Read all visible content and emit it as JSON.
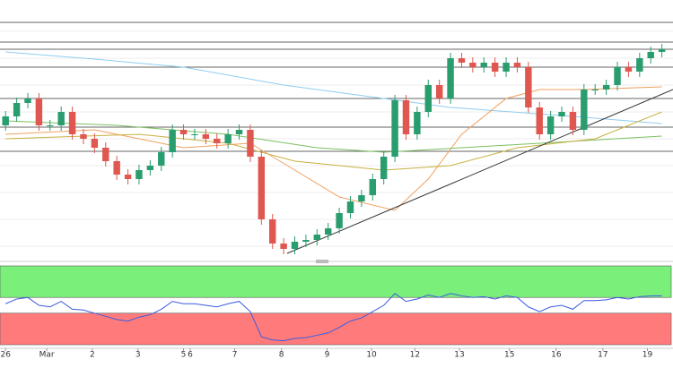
{
  "chart_data": {
    "type": "candlestick",
    "ylim": [
      0,
      280
    ],
    "xlim": [
      -0.5,
      60
    ],
    "candle_colors": {
      "up": "#2a9d6f",
      "down": "#e0574f"
    },
    "open": [
      150,
      160,
      175,
      180,
      150,
      150,
      165,
      140,
      135,
      125,
      110,
      95,
      90,
      100,
      105,
      120,
      145,
      140,
      140,
      135,
      130,
      140,
      145,
      115,
      45,
      18,
      12,
      20,
      22,
      28,
      35,
      52,
      65,
      72,
      90,
      115,
      178,
      140,
      165,
      195,
      180,
      225,
      220,
      215,
      220,
      210,
      220,
      215,
      170,
      140,
      160,
      165,
      145,
      190,
      190,
      195,
      215,
      210,
      225,
      232
    ],
    "high": [
      166,
      181,
      186,
      186,
      156,
      171,
      171,
      146,
      141,
      131,
      116,
      101,
      106,
      111,
      126,
      151,
      151,
      146,
      146,
      141,
      146,
      151,
      151,
      121,
      51,
      24,
      26,
      28,
      34,
      41,
      58,
      71,
      78,
      96,
      121,
      184,
      184,
      171,
      201,
      201,
      231,
      231,
      226,
      226,
      226,
      226,
      226,
      221,
      176,
      166,
      171,
      171,
      196,
      196,
      201,
      221,
      221,
      231,
      238,
      241
    ],
    "low": [
      144,
      154,
      169,
      144,
      144,
      144,
      134,
      129,
      119,
      104,
      89,
      84,
      84,
      94,
      99,
      114,
      134,
      134,
      129,
      124,
      124,
      134,
      109,
      39,
      12,
      6,
      6,
      14,
      16,
      22,
      29,
      46,
      59,
      66,
      84,
      109,
      134,
      134,
      159,
      174,
      174,
      214,
      209,
      209,
      204,
      204,
      209,
      164,
      134,
      134,
      154,
      139,
      139,
      184,
      184,
      189,
      204,
      204,
      219,
      226
    ],
    "close": [
      160,
      175,
      180,
      150,
      150,
      165,
      140,
      135,
      125,
      110,
      95,
      90,
      100,
      105,
      120,
      145,
      140,
      140,
      135,
      130,
      140,
      145,
      115,
      45,
      18,
      12,
      20,
      22,
      28,
      35,
      52,
      65,
      72,
      90,
      115,
      178,
      140,
      165,
      195,
      180,
      225,
      220,
      215,
      220,
      210,
      220,
      215,
      170,
      140,
      160,
      165,
      145,
      190,
      190,
      195,
      215,
      210,
      225,
      232,
      235
    ],
    "levels": [
      265,
      243,
      235,
      215,
      180,
      148,
      121
    ],
    "level_color": "#333333",
    "moving_averages": [
      {
        "color": "#8ecdf0",
        "x": [
          0,
          8,
          16,
          25,
          34,
          40,
          51,
          59
        ],
        "values": [
          232,
          224,
          215,
          195,
          180,
          170,
          160,
          152
        ]
      },
      {
        "color": "#f0a060",
        "x": [
          0,
          8,
          16,
          22,
          24,
          30,
          35,
          38,
          41,
          45,
          48,
          52,
          59
        ],
        "values": [
          140,
          145,
          125,
          130,
          115,
          70,
          55,
          90,
          140,
          180,
          190,
          190,
          193
        ]
      },
      {
        "color": "#7cc060",
        "x": [
          0,
          10,
          20,
          28,
          34,
          41,
          48,
          59
        ],
        "values": [
          155,
          150,
          140,
          125,
          120,
          125,
          130,
          138
        ]
      },
      {
        "color": "#c8b040",
        "x": [
          0,
          12,
          20,
          26,
          34,
          40,
          46,
          53,
          59
        ],
        "values": [
          135,
          140,
          130,
          110,
          100,
          105,
          125,
          135,
          165
        ]
      }
    ],
    "rsi": {
      "ylim": [
        0,
        100
      ],
      "color": "#3a5ce0",
      "upper_zone": [
        60,
        100
      ],
      "upper_color": "#7af07a",
      "lower_zone": [
        0,
        40
      ],
      "lower_color": "#ff7b7b",
      "values": [
        52,
        58,
        60,
        50,
        48,
        55,
        45,
        44,
        40,
        36,
        32,
        30,
        35,
        38,
        45,
        55,
        52,
        52,
        50,
        48,
        52,
        55,
        42,
        10,
        6,
        5,
        8,
        9,
        12,
        15,
        22,
        30,
        34,
        42,
        50,
        65,
        55,
        58,
        63,
        60,
        65,
        62,
        60,
        61,
        58,
        62,
        60,
        48,
        42,
        48,
        50,
        45,
        56,
        56,
        57,
        60,
        58,
        61,
        62,
        62
      ]
    },
    "xticks": [
      {
        "value": 0,
        "label": "26"
      },
      {
        "value": 3.7,
        "label": "Mar"
      },
      {
        "value": 7.8,
        "label": "2"
      },
      {
        "value": 11.9,
        "label": "3"
      },
      {
        "value": 16,
        "label": "5"
      },
      {
        "value": 16.6,
        "label": "6"
      },
      {
        "value": 20.6,
        "label": "7"
      },
      {
        "value": 24.8,
        "label": "8"
      },
      {
        "value": 28.9,
        "label": "9"
      },
      {
        "value": 32.9,
        "label": "10"
      },
      {
        "value": 36.8,
        "label": "12"
      },
      {
        "value": 40.8,
        "label": "13"
      },
      {
        "value": 45.3,
        "label": "15"
      },
      {
        "value": 49.5,
        "label": "16"
      },
      {
        "value": 53.7,
        "label": "17"
      },
      {
        "value": 57.7,
        "label": "19"
      }
    ]
  }
}
